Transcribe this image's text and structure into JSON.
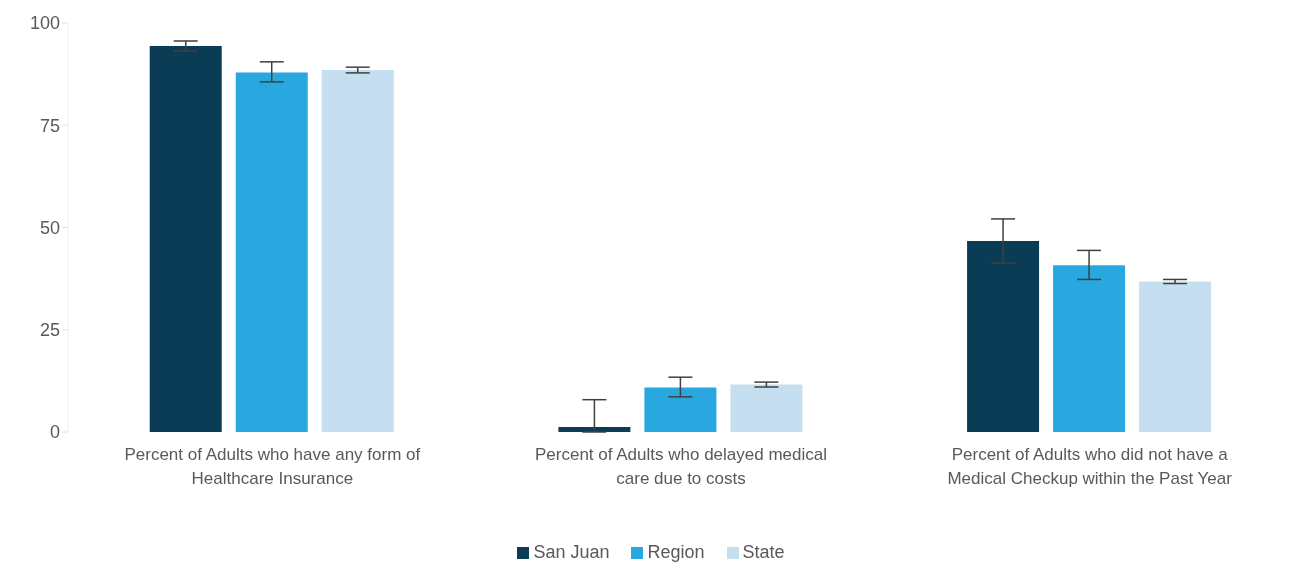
{
  "chart_data": {
    "type": "bar",
    "categories": [
      "Percent of Adults who have any form of Healthcare Insurance",
      "Percent of Adults who delayed medical care due to costs",
      "Percent of Adults who did not have a Medical Checkup within the Past Year"
    ],
    "series": [
      {
        "name": "San Juan",
        "color": "#0b3c55",
        "values": [
          94.4,
          1.2,
          46.7
        ],
        "errors": [
          [
            93.2,
            95.6
          ],
          [
            0,
            7.9
          ],
          [
            41.3,
            52.1
          ]
        ]
      },
      {
        "name": "Region",
        "color": "#29a8e0",
        "values": [
          87.9,
          10.9,
          40.8
        ],
        "errors": [
          [
            85.6,
            90.5
          ],
          [
            8.6,
            13.4
          ],
          [
            37.3,
            44.4
          ]
        ]
      },
      {
        "name": "State",
        "color": "#c5dff0",
        "values": [
          88.5,
          11.6,
          36.8
        ],
        "errors": [
          [
            87.8,
            89.2
          ],
          [
            11.0,
            12.2
          ],
          [
            36.3,
            37.3
          ]
        ]
      }
    ],
    "ylim": [
      0,
      100
    ],
    "yticks": [
      0,
      25,
      50,
      75,
      100
    ],
    "grid": false,
    "legend": "bottom"
  }
}
